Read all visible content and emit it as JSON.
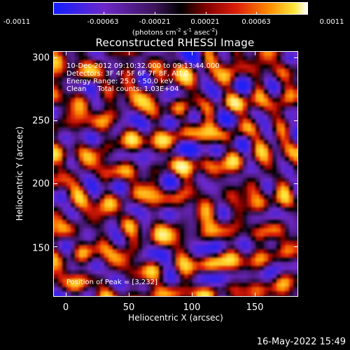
{
  "colorbar": {
    "ticks": [
      "-0.0011",
      "-0.00063",
      "-0.00021",
      "0.00021",
      "0.00063",
      "0.0011"
    ],
    "units_main": "(photons cm",
    "units_exp1": "-2",
    "units_mid1": " s",
    "units_exp2": "-1",
    "units_mid2": " asec",
    "units_exp3": "-2",
    "units_end": ")"
  },
  "title": "Reconstructed RHESSI Image",
  "annotations": {
    "time": "10-Dec-2012 09:10:32.000 to 09:13:44.000",
    "detectors": "Detectors: 3F 4F 5F 6F 7F 8F, Att 0",
    "energy": "Energy Range: 25.0 - 50.0 keV",
    "clean": "Clean     Total counts: 1.03E+04",
    "peak": "Position of Peak = [3,232]"
  },
  "axes": {
    "xlabel": "Heliocentric X (arcsec)",
    "ylabel": "Heliocentric Y (arcsec)",
    "xticks": [
      "0",
      "50",
      "100",
      "150"
    ],
    "yticks": [
      "300",
      "250",
      "200",
      "150"
    ]
  },
  "chart_data": {
    "type": "heatmap",
    "title": "Reconstructed RHESSI Image",
    "xlabel": "Heliocentric X (arcsec)",
    "ylabel": "Heliocentric Y (arcsec)",
    "xlim": [
      -8,
      182
    ],
    "ylim": [
      110,
      305
    ],
    "xticks": [
      0,
      50,
      100,
      150
    ],
    "yticks": [
      150,
      200,
      250,
      300
    ],
    "color_range": [
      -0.0011,
      0.0011
    ],
    "colormap": "blue-purple-black-red-orange-yellow-white",
    "peak_position": [
      3,
      232
    ]
  },
  "footer": {
    "date": "16-May-2022 15:49"
  }
}
